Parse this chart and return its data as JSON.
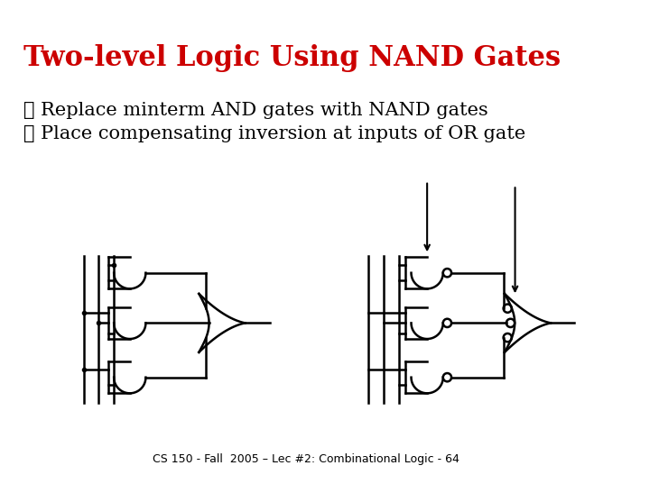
{
  "title": "Two-level Logic Using NAND Gates",
  "bullet1": "Replace minterm AND gates with NAND gates",
  "bullet2": "Place compensating inversion at inputs of OR gate",
  "footer": "CS 150 - Fall  2005 – Lec #2: Combinational Logic - 64",
  "title_color": "#cc0000",
  "bullet_color": "#000000",
  "background_color": "#ffffff",
  "title_fontsize": 22,
  "bullet_fontsize": 15,
  "footer_fontsize": 9,
  "bullet_symbol": "❖"
}
